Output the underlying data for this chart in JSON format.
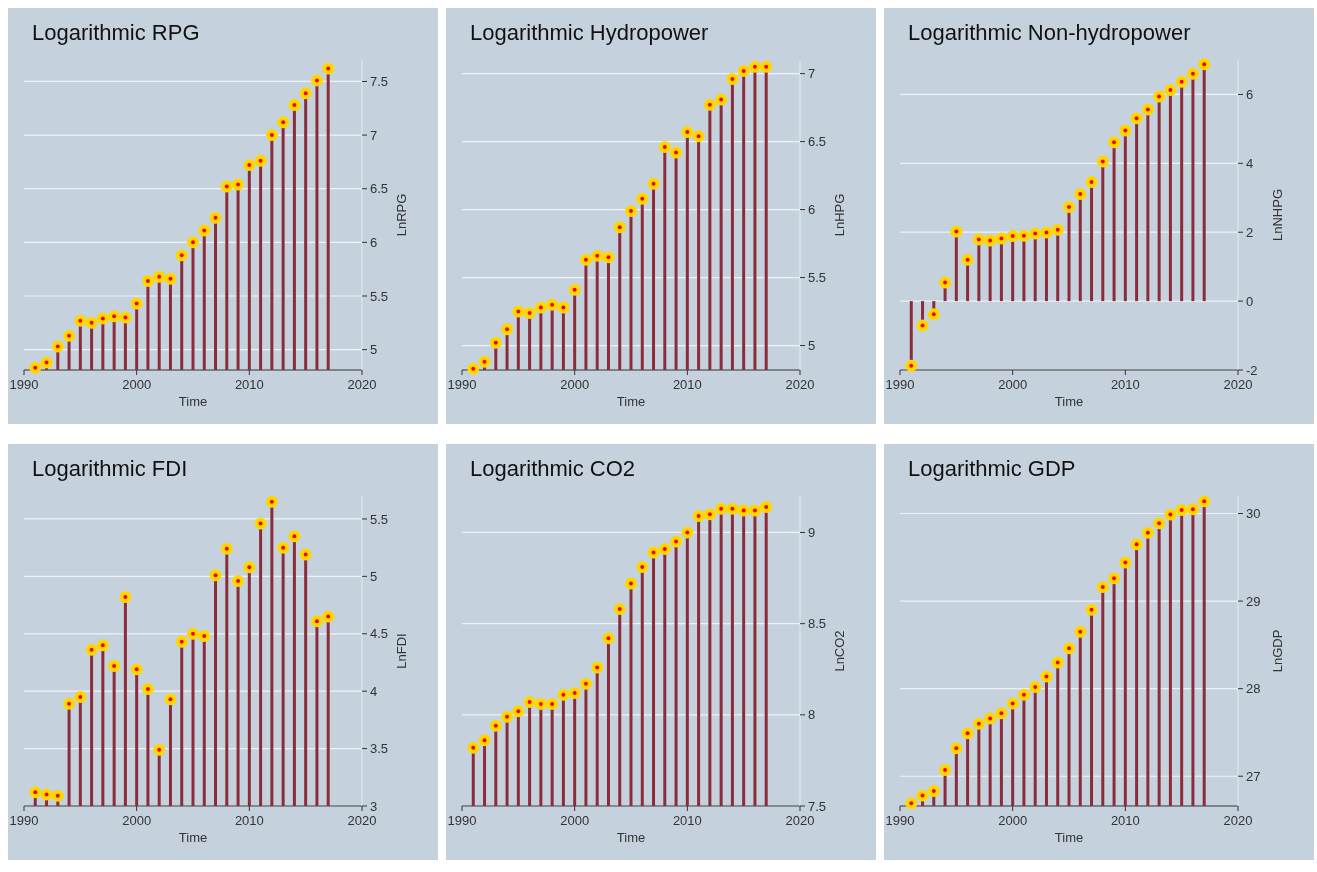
{
  "chart_data": [
    {
      "type": "lollipop",
      "title": "Logarithmic RPG",
      "xlabel": "Time",
      "ylabel": "LnRPG",
      "color": "#ffd700",
      "marker": "circle",
      "grid": "y",
      "xlim": [
        1990,
        2020
      ],
      "xticks": [
        1990,
        2000,
        2010,
        2020
      ],
      "ylim": [
        4.81,
        7.7
      ],
      "yticks": [
        5,
        5.5,
        6,
        6.5,
        7,
        7.5
      ],
      "x": [
        1991,
        1992,
        1993,
        1994,
        1995,
        1996,
        1997,
        1998,
        1999,
        2000,
        2001,
        2002,
        2003,
        2004,
        2005,
        2006,
        2007,
        2008,
        2009,
        2010,
        2011,
        2012,
        2013,
        2014,
        2015,
        2016,
        2017
      ],
      "values": [
        4.83,
        4.88,
        5.03,
        5.13,
        5.27,
        5.25,
        5.29,
        5.31,
        5.3,
        5.43,
        5.64,
        5.68,
        5.66,
        5.88,
        6.0,
        6.11,
        6.23,
        6.52,
        6.54,
        6.72,
        6.76,
        7.0,
        7.12,
        7.28,
        7.39,
        7.51,
        7.62
      ]
    },
    {
      "type": "lollipop",
      "title": "Logarithmic Hydropower",
      "xlabel": "Time",
      "ylabel": "LnHPG",
      "color": "#ffd700",
      "marker": "circle",
      "grid": "y",
      "xlim": [
        1990,
        2020
      ],
      "xticks": [
        1990,
        2000,
        2010,
        2020
      ],
      "ylim": [
        4.82,
        7.1
      ],
      "yticks": [
        5,
        5.5,
        6,
        6.5,
        7
      ],
      "x": [
        1991,
        1992,
        1993,
        1994,
        1995,
        1996,
        1997,
        1998,
        1999,
        2000,
        2001,
        2002,
        2003,
        2004,
        2005,
        2006,
        2007,
        2008,
        2009,
        2010,
        2011,
        2012,
        2013,
        2014,
        2015,
        2016,
        2017
      ],
      "values": [
        4.83,
        4.88,
        5.02,
        5.12,
        5.25,
        5.24,
        5.28,
        5.3,
        5.28,
        5.41,
        5.63,
        5.66,
        5.65,
        5.87,
        5.99,
        6.08,
        6.19,
        6.46,
        6.42,
        6.57,
        6.54,
        6.77,
        6.81,
        6.96,
        7.02,
        7.05,
        7.05
      ]
    },
    {
      "type": "lollipop",
      "title": "Logarithmic Non-hydropower",
      "xlabel": "Time",
      "ylabel": "LnNHPG",
      "color": "#ffd700",
      "marker": "circle",
      "grid": "y",
      "xlim": [
        1990,
        2020
      ],
      "xticks": [
        1990,
        2000,
        2010,
        2020
      ],
      "ylim": [
        -2,
        7
      ],
      "yticks": [
        -2,
        0,
        2,
        4,
        6
      ],
      "x": [
        1991,
        1992,
        1993,
        1994,
        1995,
        1996,
        1997,
        1998,
        1999,
        2000,
        2001,
        2002,
        2003,
        2004,
        2005,
        2006,
        2007,
        2008,
        2009,
        2010,
        2011,
        2012,
        2013,
        2014,
        2015,
        2016,
        2017
      ],
      "values": [
        -1.88,
        -0.71,
        -0.38,
        0.54,
        2.02,
        1.2,
        1.79,
        1.76,
        1.82,
        1.89,
        1.9,
        1.96,
        1.99,
        2.07,
        2.73,
        3.11,
        3.46,
        4.05,
        4.61,
        4.95,
        5.31,
        5.56,
        5.94,
        6.13,
        6.37,
        6.6,
        6.88
      ]
    },
    {
      "type": "lollipop",
      "title": "Logarithmic FDI",
      "xlabel": "Time",
      "ylabel": "LnFDI",
      "color": "#ffd700",
      "marker": "circle",
      "grid": "y",
      "xlim": [
        1990,
        2020
      ],
      "xticks": [
        1990,
        2000,
        2010,
        2020
      ],
      "ylim": [
        3,
        5.7
      ],
      "yticks": [
        3,
        3.5,
        4,
        4.5,
        5,
        5.5
      ],
      "x": [
        1991,
        1992,
        1993,
        1994,
        1995,
        1996,
        1997,
        1998,
        1999,
        2000,
        2001,
        2002,
        2003,
        2004,
        2005,
        2006,
        2007,
        2008,
        2009,
        2010,
        2011,
        2012,
        2013,
        2014,
        2015,
        2016,
        2017
      ],
      "values": [
        3.12,
        3.1,
        3.09,
        3.89,
        3.95,
        4.36,
        4.4,
        4.22,
        4.82,
        4.19,
        4.02,
        3.49,
        3.93,
        4.43,
        4.5,
        4.48,
        5.01,
        5.24,
        4.96,
        5.08,
        5.46,
        5.65,
        5.25,
        5.35,
        5.19,
        4.61,
        4.65
      ]
    },
    {
      "type": "lollipop",
      "title": "Logarithmic CO2",
      "xlabel": "Time",
      "ylabel": "LnCO2",
      "color": "#ffd700",
      "marker": "circle",
      "grid": "y",
      "xlim": [
        1990,
        2020
      ],
      "xticks": [
        1990,
        2000,
        2010,
        2020
      ],
      "ylim": [
        7.5,
        9.2
      ],
      "yticks": [
        7.5,
        8,
        8.5,
        9
      ],
      "x": [
        1991,
        1992,
        1993,
        1994,
        1995,
        1996,
        1997,
        1998,
        1999,
        2000,
        2001,
        2002,
        2003,
        2004,
        2005,
        2006,
        2007,
        2008,
        2009,
        2010,
        2011,
        2012,
        2013,
        2014,
        2015,
        2016,
        2017
      ],
      "values": [
        7.82,
        7.86,
        7.94,
        7.99,
        8.02,
        8.07,
        8.06,
        8.06,
        8.11,
        8.12,
        8.17,
        8.26,
        8.42,
        8.58,
        8.72,
        8.81,
        8.89,
        8.91,
        8.95,
        9.0,
        9.09,
        9.1,
        9.13,
        9.13,
        9.12,
        9.12,
        9.14
      ]
    },
    {
      "type": "lollipop",
      "title": "Logarithmic GDP",
      "xlabel": "Time",
      "ylabel": "LnGDP",
      "color": "#ffd700",
      "marker": "circle",
      "grid": "y",
      "xlim": [
        1990,
        2020
      ],
      "xticks": [
        1990,
        2000,
        2010,
        2020
      ],
      "ylim": [
        26.66,
        30.2
      ],
      "yticks": [
        27,
        28,
        29,
        30
      ],
      "x": [
        1991,
        1992,
        1993,
        1994,
        1995,
        1996,
        1997,
        1998,
        1999,
        2000,
        2001,
        2002,
        2003,
        2004,
        2005,
        2006,
        2007,
        2008,
        2009,
        2010,
        2011,
        2012,
        2013,
        2014,
        2015,
        2016,
        2017
      ],
      "values": [
        26.69,
        26.78,
        26.83,
        27.07,
        27.32,
        27.49,
        27.6,
        27.66,
        27.72,
        27.83,
        27.93,
        28.02,
        28.14,
        28.3,
        28.46,
        28.65,
        28.9,
        29.16,
        29.26,
        29.44,
        29.65,
        29.78,
        29.89,
        29.99,
        30.04,
        30.05,
        30.14
      ]
    }
  ]
}
